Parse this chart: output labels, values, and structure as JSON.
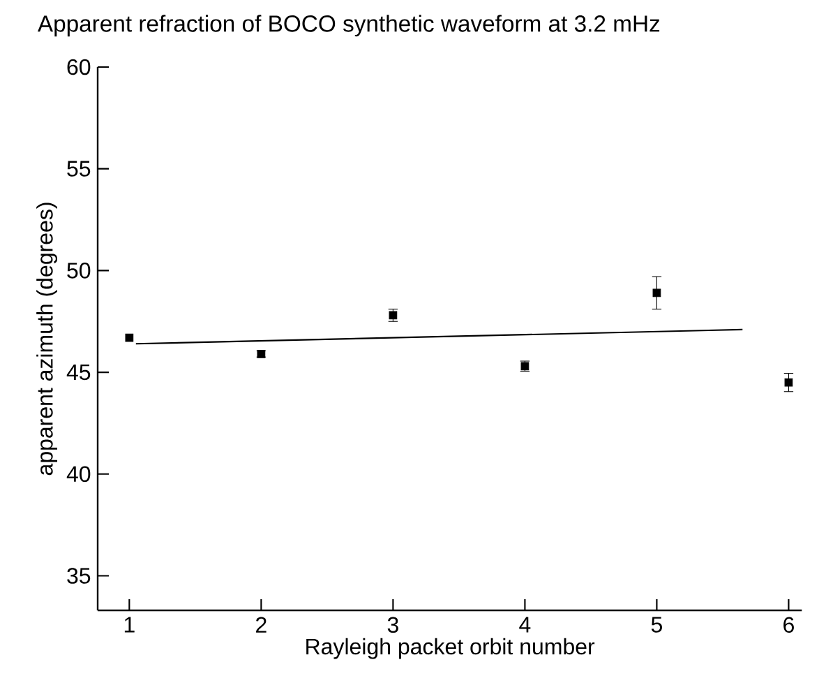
{
  "chart_data": {
    "type": "scatter",
    "title": "Apparent refraction of BOCO synthetic waveform at 3.2 mHz",
    "xlabel": "Rayleigh packet orbit number",
    "ylabel": "apparent azimuth (degrees)",
    "xlim": [
      0.76,
      6.1
    ],
    "ylim": [
      33.3,
      60
    ],
    "xticks": [
      1,
      2,
      3,
      4,
      5,
      6
    ],
    "yticks": [
      35,
      40,
      45,
      50,
      55,
      60
    ],
    "grid": false,
    "marker": "square",
    "series": [
      {
        "color": "#000000",
        "x": [
          1,
          2,
          3,
          4,
          5,
          6
        ],
        "values": [
          46.7,
          45.9,
          47.8,
          45.3,
          48.9,
          44.5
        ],
        "errors": [
          null,
          0.15,
          0.3,
          0.25,
          0.8,
          0.45
        ]
      },
      {
        "type": "line",
        "color": "#000000",
        "x": [
          1.05,
          5.65
        ],
        "values": [
          46.4,
          47.1
        ],
        "marker": "none",
        "line_style": "solid"
      }
    ]
  }
}
